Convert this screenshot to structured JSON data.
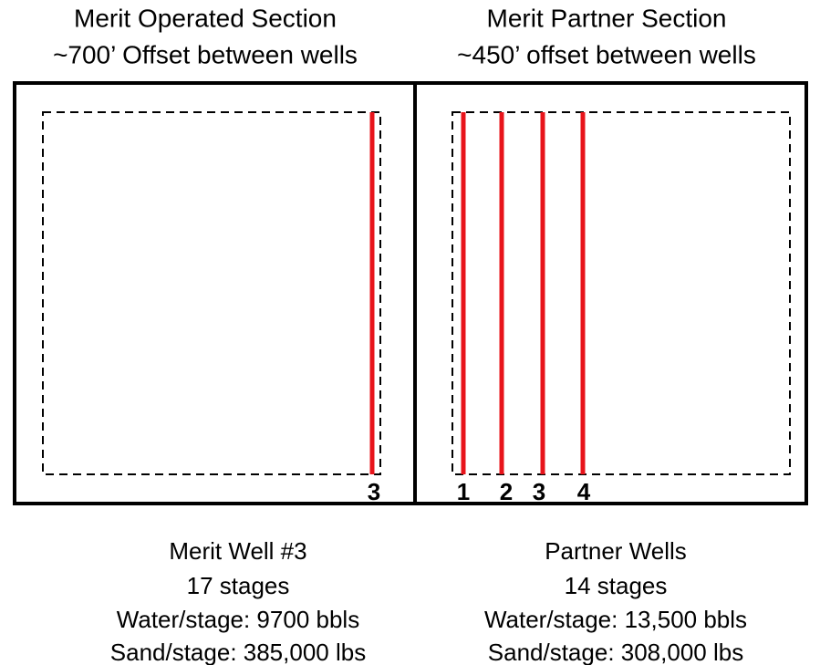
{
  "sections": [
    {
      "heading": [
        "Merit Operated Section",
        "~700’ Offset between wells"
      ],
      "well_labels": [
        "3"
      ],
      "details": [
        "Merit Well #3",
        "17 stages",
        "Water/stage: 9700 bbls",
        "Sand/stage: 385,000 lbs"
      ]
    },
    {
      "heading": [
        "Merit Partner Section",
        "~450’ offset between wells"
      ],
      "well_labels": [
        "1",
        "2",
        "3",
        "4"
      ],
      "details": [
        "Partner Wells",
        "14 stages",
        "Water/stage: 13,500 bbls",
        "Sand/stage: 308,000 lbs"
      ]
    }
  ]
}
